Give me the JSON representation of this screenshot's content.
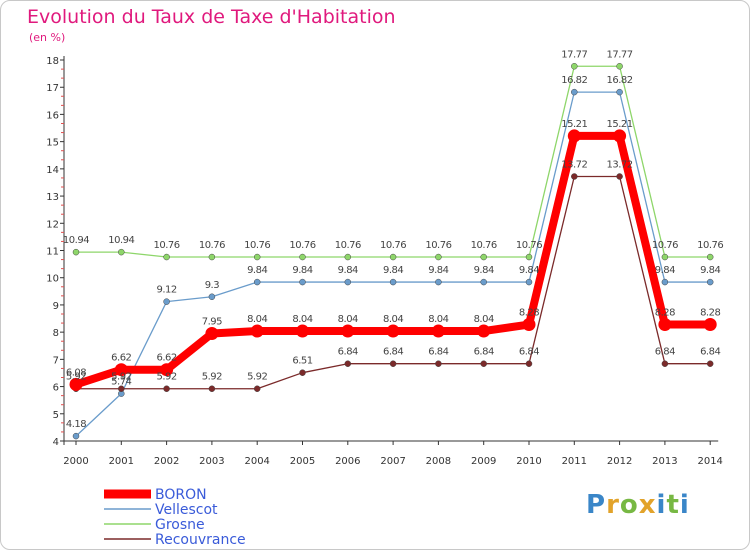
{
  "title": "Evolution du Taux de Taxe d'Habitation",
  "subtitle": "(en %)",
  "logo": "Proxiti",
  "chart_data": {
    "type": "line",
    "x": [
      "2000",
      "2001",
      "2002",
      "2003",
      "2004",
      "2005",
      "2006",
      "2007",
      "2008",
      "2009",
      "2010",
      "2011",
      "2012",
      "2013",
      "2014"
    ],
    "ylim": [
      4,
      18
    ],
    "yticks": [
      4,
      5,
      6,
      7,
      8,
      9,
      10,
      11,
      12,
      13,
      14,
      15,
      16,
      17,
      18
    ],
    "grid": false,
    "legend_position": "bottom-left",
    "series": [
      {
        "name": "BORON",
        "color": "#ff0000",
        "values": [
          6.08,
          6.62,
          6.62,
          7.95,
          8.04,
          8.04,
          8.04,
          8.04,
          8.04,
          8.04,
          8.28,
          15.21,
          15.21,
          8.28,
          8.28
        ],
        "labels": [
          "6.08",
          "6.62",
          "6.62",
          "7.95",
          "8.04",
          "8.04",
          "8.04",
          "8.04",
          "8.04",
          "8.04",
          "8.28",
          "15.21",
          "15.21",
          "8.28",
          "8.28"
        ]
      },
      {
        "name": "Vellescot",
        "color": "#6a9ccb",
        "values": [
          4.18,
          5.74,
          9.12,
          9.3,
          9.84,
          9.84,
          9.84,
          9.84,
          9.84,
          9.84,
          9.84,
          16.82,
          16.82,
          9.84,
          9.84
        ],
        "labels": [
          "4.18",
          "5.74",
          "9.12",
          "9.3",
          "9.84",
          "9.84",
          "9.84",
          "9.84",
          "9.84",
          "9.84",
          "9.84",
          "16.82",
          "16.82",
          "9.84",
          "9.84"
        ]
      },
      {
        "name": "Grosne",
        "color": "#8ed66a",
        "values": [
          10.94,
          10.94,
          10.76,
          10.76,
          10.76,
          10.76,
          10.76,
          10.76,
          10.76,
          10.76,
          10.76,
          17.77,
          17.77,
          10.76,
          10.76
        ],
        "labels": [
          "10.94",
          "10.94",
          "10.76",
          "10.76",
          "10.76",
          "10.76",
          "10.76",
          "10.76",
          "10.76",
          "10.76",
          "10.76",
          "17.77",
          "17.77",
          "10.76",
          "10.76"
        ]
      },
      {
        "name": "Recouvrance",
        "color": "#7b2a2a",
        "values": [
          5.92,
          5.92,
          5.92,
          5.92,
          5.92,
          6.51,
          6.84,
          6.84,
          6.84,
          6.84,
          6.84,
          13.72,
          13.72,
          6.84,
          6.84
        ],
        "labels": [
          "5.92",
          "5.92",
          "5.92",
          "5.92",
          "5.92",
          "6.51",
          "6.84",
          "6.84",
          "6.84",
          "6.84",
          "6.84",
          "13.72",
          "13.72",
          "6.84",
          "6.84"
        ]
      }
    ]
  }
}
